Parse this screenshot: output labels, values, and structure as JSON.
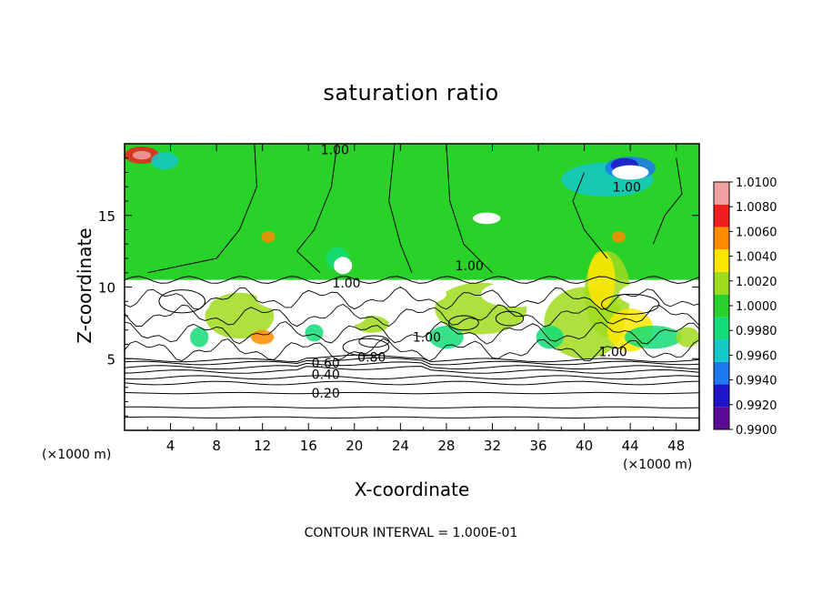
{
  "chart_data": {
    "type": "heatmap",
    "title": "saturation ratio",
    "xlabel": "X-coordinate",
    "ylabel": "Z-coordinate",
    "x_unit_left": "(×1000 m)",
    "x_unit_right": "(×1000 m)",
    "footnote": "CONTOUR INTERVAL = 1.000E-01",
    "xlim": [
      0,
      50
    ],
    "ylim": [
      0,
      20
    ],
    "x_ticks": [
      4,
      8,
      12,
      16,
      20,
      24,
      28,
      32,
      36,
      40,
      44,
      48
    ],
    "x_tick_labels": [
      "4",
      "8",
      "12",
      "16",
      "20",
      "24",
      "28",
      "32",
      "36",
      "40",
      "44",
      "48"
    ],
    "y_ticks": [
      5,
      10,
      15
    ],
    "y_tick_labels": [
      "5",
      "10",
      "15"
    ],
    "colorbar": {
      "levels": [
        0.99,
        0.992,
        0.994,
        0.996,
        0.998,
        1.0,
        1.002,
        1.004,
        1.006,
        1.008,
        1.01
      ],
      "labels": [
        "0.9900",
        "0.9920",
        "0.9940",
        "0.9960",
        "0.9980",
        "1.0000",
        "1.0020",
        "1.0040",
        "1.0060",
        "1.0080",
        "1.0100"
      ],
      "colors": [
        "#5a0a96",
        "#1e14c8",
        "#1e78f0",
        "#14c8c8",
        "#14dc78",
        "#28d228",
        "#a0dc1e",
        "#ffe600",
        "#ff8c00",
        "#f01e1e",
        "#f0a0a0"
      ]
    },
    "contour_labels": [
      {
        "text": "1.00",
        "x": 18.3,
        "y": 19.6
      },
      {
        "text": "1.00",
        "x": 43.7,
        "y": 17.0
      },
      {
        "text": "1.00",
        "x": 30.0,
        "y": 11.5
      },
      {
        "text": "1.00",
        "x": 19.3,
        "y": 10.3
      },
      {
        "text": "1.00",
        "x": 26.3,
        "y": 6.5
      },
      {
        "text": "1.00",
        "x": 42.5,
        "y": 5.5
      },
      {
        "text": "0.80",
        "x": 21.5,
        "y": 5.1
      },
      {
        "text": "0.60",
        "x": 17.5,
        "y": 4.7
      },
      {
        "text": "0.40",
        "x": 17.5,
        "y": 3.9
      },
      {
        "text": "0.20",
        "x": 17.5,
        "y": 2.6
      }
    ],
    "horizontal_contours_z": [
      0.9,
      1.6,
      2.6,
      3.3,
      3.7,
      4.1,
      4.4,
      4.7,
      4.9
    ]
  }
}
